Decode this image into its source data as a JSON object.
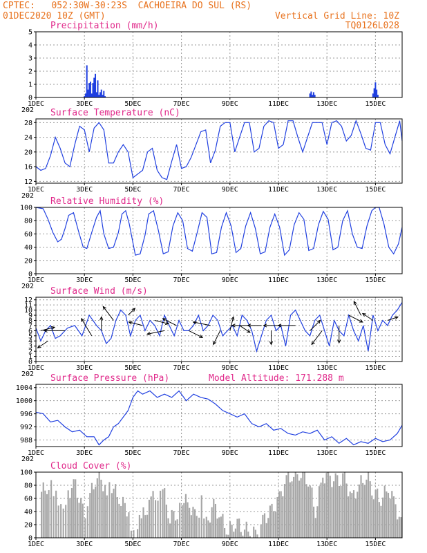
{
  "header": {
    "line1": "CPTEC:   052:30W-30:23S  CACHOEIRA DO SUL (RS)",
    "line2": "01DEC2020 10Z (GMT)",
    "grid_note": "Vertical Grid Line: 10Z",
    "code": "TQ0126L028"
  },
  "colors": {
    "header": "#e8731f",
    "title": "#e0288a",
    "series": "#1f3fe0",
    "cloud": "#a6a6a6",
    "grid": "#999999"
  },
  "x_tick_labels": [
    "1DEC",
    "3DEC",
    "5DEC",
    "7DEC",
    "9DEC",
    "11DEC",
    "13DEC",
    "15DEC"
  ],
  "x_tick_days": [
    1,
    3,
    5,
    7,
    9,
    11,
    13,
    15
  ],
  "x_partial_label": "202",
  "chart_data": [
    {
      "type": "bar",
      "title": "Precipitation (mm/h)",
      "xlim": [
        1,
        16.1
      ],
      "ylim": [
        0,
        5
      ],
      "yticks": [
        0,
        1,
        2,
        3,
        4,
        5
      ],
      "x": [
        3.0,
        3.05,
        3.1,
        3.15,
        3.2,
        3.25,
        3.3,
        3.35,
        3.4,
        3.45,
        3.5,
        3.55,
        3.6,
        3.65,
        3.7,
        3.75,
        3.8,
        3.85,
        12.3,
        12.35,
        12.4,
        12.45,
        12.5,
        14.9,
        14.95,
        15.0,
        15.05,
        15.1
      ],
      "values": [
        0.1,
        0.3,
        2.45,
        0.6,
        1.1,
        1.2,
        0.3,
        1.1,
        1.5,
        1.8,
        0.4,
        1.3,
        0.2,
        0.4,
        0.6,
        0.2,
        0.5,
        0.1,
        0.3,
        0.45,
        0.2,
        0.4,
        0.2,
        0.3,
        0.7,
        1.15,
        0.6,
        0.2
      ]
    },
    {
      "type": "line",
      "title": "Surface Temperature (nC)",
      "xlim": [
        1,
        16.1
      ],
      "ylim": [
        11.5,
        29
      ],
      "yticks": [
        12,
        16,
        20,
        24,
        28
      ],
      "x": [
        1.0,
        1.2,
        1.4,
        1.6,
        1.8,
        2.0,
        2.2,
        2.4,
        2.6,
        2.8,
        3.0,
        3.2,
        3.4,
        3.6,
        3.8,
        4.0,
        4.2,
        4.4,
        4.6,
        4.8,
        5.0,
        5.2,
        5.4,
        5.6,
        5.8,
        6.0,
        6.2,
        6.4,
        6.6,
        6.8,
        7.0,
        7.2,
        7.4,
        7.6,
        7.8,
        8.0,
        8.2,
        8.4,
        8.6,
        8.8,
        9.0,
        9.2,
        9.4,
        9.6,
        9.8,
        10.0,
        10.2,
        10.4,
        10.6,
        10.8,
        11.0,
        11.2,
        11.4,
        11.6,
        11.8,
        12.0,
        12.2,
        12.4,
        12.6,
        12.8,
        13.0,
        13.2,
        13.4,
        13.6,
        13.8,
        14.0,
        14.2,
        14.4,
        14.6,
        14.8,
        15.0,
        15.2,
        15.4,
        15.6,
        15.8,
        16.0,
        16.1
      ],
      "values": [
        16,
        15,
        15.5,
        19,
        24,
        21,
        17,
        16,
        22,
        27,
        26,
        20,
        26.5,
        28,
        26,
        17,
        17,
        20,
        22,
        20,
        13,
        14,
        15,
        20,
        21,
        15,
        13,
        12.5,
        17.5,
        22,
        15.5,
        16,
        18.5,
        22,
        25.5,
        26,
        17,
        20.5,
        27,
        28,
        28,
        20,
        24,
        28,
        28,
        20,
        21,
        27,
        28.5,
        28,
        21,
        22,
        28.5,
        28.5,
        24,
        20,
        24,
        28,
        28,
        28,
        22,
        28,
        28.5,
        27,
        23,
        24.5,
        28.5,
        25,
        21,
        20.5,
        28,
        28,
        22,
        19.5,
        24,
        28.5,
        23
      ]
    },
    {
      "type": "line",
      "title": "Relative Humidity (%)",
      "xlim": [
        1,
        16.1
      ],
      "ylim": [
        0,
        100
      ],
      "yticks": [
        0,
        20,
        40,
        60,
        80,
        100
      ],
      "x": [
        1.0,
        1.15,
        1.3,
        1.5,
        1.7,
        1.9,
        2.05,
        2.2,
        2.35,
        2.55,
        2.75,
        2.95,
        3.1,
        3.3,
        3.5,
        3.65,
        3.8,
        4.0,
        4.2,
        4.4,
        4.55,
        4.7,
        4.85,
        5.1,
        5.3,
        5.5,
        5.65,
        5.85,
        6.05,
        6.25,
        6.45,
        6.65,
        6.85,
        7.05,
        7.25,
        7.45,
        7.65,
        7.85,
        8.05,
        8.25,
        8.45,
        8.65,
        8.85,
        9.05,
        9.25,
        9.45,
        9.65,
        9.85,
        10.05,
        10.25,
        10.45,
        10.65,
        10.85,
        11.05,
        11.25,
        11.45,
        11.65,
        11.85,
        12.05,
        12.25,
        12.45,
        12.65,
        12.85,
        13.05,
        13.25,
        13.45,
        13.65,
        13.85,
        14.05,
        14.25,
        14.45,
        14.65,
        14.85,
        15.0,
        15.15,
        15.35,
        15.55,
        15.75,
        15.95,
        16.1
      ],
      "values": [
        100,
        99,
        98,
        82,
        62,
        48,
        52,
        68,
        88,
        92,
        65,
        40,
        38,
        62,
        85,
        95,
        60,
        38,
        40,
        62,
        90,
        95,
        75,
        28,
        30,
        58,
        90,
        95,
        65,
        30,
        33,
        72,
        92,
        80,
        38,
        34,
        62,
        92,
        85,
        30,
        32,
        70,
        92,
        72,
        32,
        38,
        72,
        92,
        68,
        30,
        33,
        70,
        90,
        70,
        28,
        36,
        74,
        92,
        82,
        35,
        38,
        74,
        94,
        82,
        36,
        40,
        80,
        95,
        60,
        40,
        38,
        72,
        95,
        100,
        100,
        75,
        40,
        30,
        45,
        70
      ]
    },
    {
      "type": "line",
      "title": "Surface Wind (m/s)",
      "xlim": [
        1,
        16.1
      ],
      "ylim": [
        0,
        12.5
      ],
      "yticks": [
        0,
        1,
        2,
        3,
        4,
        5,
        6,
        7,
        8,
        9,
        10,
        11,
        12
      ],
      "x": [
        1.0,
        1.2,
        1.4,
        1.6,
        1.8,
        2.0,
        2.3,
        2.6,
        2.9,
        3.2,
        3.5,
        3.7,
        3.9,
        4.1,
        4.3,
        4.5,
        4.7,
        4.9,
        5.1,
        5.3,
        5.5,
        5.7,
        5.9,
        6.1,
        6.3,
        6.5,
        6.7,
        6.9,
        7.1,
        7.3,
        7.5,
        7.7,
        7.9,
        8.1,
        8.3,
        8.5,
        8.7,
        8.9,
        9.1,
        9.3,
        9.5,
        9.7,
        9.9,
        10.1,
        10.3,
        10.5,
        10.7,
        10.9,
        11.1,
        11.3,
        11.5,
        11.7,
        11.9,
        12.1,
        12.3,
        12.5,
        12.7,
        12.9,
        13.1,
        13.3,
        13.5,
        13.7,
        13.9,
        14.1,
        14.3,
        14.5,
        14.7,
        14.9,
        15.1,
        15.3,
        15.5,
        15.7,
        15.9,
        16.1
      ],
      "values": [
        6.5,
        4,
        6,
        7,
        4.5,
        5,
        6.5,
        7,
        5,
        9,
        7,
        6,
        3.5,
        4.5,
        8,
        10,
        9,
        5,
        8,
        9,
        6,
        8,
        7,
        5,
        9,
        7,
        5,
        8,
        6,
        6,
        7,
        9,
        6,
        7,
        9,
        8,
        5,
        6,
        7,
        5,
        9,
        8,
        6,
        2,
        5,
        8,
        9,
        6,
        7,
        3,
        9,
        10,
        8,
        6,
        5,
        8,
        9,
        6,
        3,
        8,
        6,
        5,
        9,
        6,
        4,
        7,
        2,
        9,
        6,
        8,
        7,
        9,
        10,
        11.5
      ]
    },
    {
      "type": "line",
      "title": "Surface Pressure (hPa)",
      "annotation": "Model Altitude: 171.288  m",
      "xlim": [
        1,
        16.1
      ],
      "ylim": [
        986,
        1005
      ],
      "yticks": [
        988,
        992,
        996,
        1000,
        1004
      ],
      "x": [
        1.0,
        1.3,
        1.6,
        1.9,
        2.2,
        2.5,
        2.8,
        3.1,
        3.4,
        3.6,
        3.8,
        4.0,
        4.2,
        4.4,
        4.6,
        4.8,
        5.0,
        5.2,
        5.4,
        5.7,
        6.0,
        6.3,
        6.6,
        6.9,
        7.2,
        7.5,
        7.8,
        8.1,
        8.4,
        8.7,
        9.0,
        9.3,
        9.6,
        9.9,
        10.2,
        10.5,
        10.8,
        11.1,
        11.4,
        11.7,
        12.0,
        12.3,
        12.6,
        12.9,
        13.2,
        13.5,
        13.8,
        14.1,
        14.4,
        14.7,
        15.0,
        15.3,
        15.6,
        15.9,
        16.1
      ],
      "values": [
        996.5,
        996,
        993.5,
        994,
        992,
        990.5,
        991,
        989,
        989,
        986.5,
        988,
        989,
        992,
        993,
        995,
        997,
        1001,
        1003,
        1002,
        1003,
        1001,
        1002,
        1001,
        1003,
        1000,
        1002,
        1001,
        1000.5,
        999,
        997,
        996,
        995,
        996,
        993,
        992,
        993,
        991,
        991.5,
        990,
        989.5,
        990.5,
        990,
        991,
        988,
        989,
        987,
        988.5,
        986.5,
        987.5,
        987,
        988.5,
        987.5,
        988,
        990,
        992.5
      ]
    },
    {
      "type": "area",
      "title": "Cloud Cover (%)",
      "xlim": [
        1,
        16.1
      ],
      "ylim": [
        0,
        100
      ],
      "yticks": [
        0,
        20,
        40,
        60,
        80,
        100
      ],
      "x": [
        1.2,
        1.5,
        1.7,
        1.9,
        2.1,
        2.3,
        2.6,
        2.9,
        3.0,
        3.2,
        3.5,
        3.9,
        4.1,
        4.4,
        4.8,
        5.0,
        5.4,
        5.8,
        6.0,
        6.2,
        6.5,
        6.8,
        7.0,
        7.3,
        7.6,
        7.8,
        8.0,
        8.3,
        8.6,
        8.9,
        9.2,
        9.5,
        9.8,
        10.1,
        10.4,
        10.7,
        11.0,
        11.3,
        11.6,
        11.9,
        12.2,
        12.5,
        12.8,
        13.1,
        13.4,
        13.7,
        14.0,
        14.3,
        14.6,
        14.9,
        15.2,
        15.5,
        15.8,
        16.1
      ],
      "values": [
        70,
        80,
        75,
        60,
        50,
        70,
        80,
        40,
        20,
        65,
        95,
        75,
        80,
        60,
        40,
        5,
        35,
        60,
        50,
        75,
        30,
        40,
        60,
        50,
        30,
        55,
        20,
        50,
        30,
        10,
        25,
        15,
        10,
        5,
        30,
        40,
        60,
        90,
        95,
        100,
        90,
        40,
        95,
        90,
        85,
        90,
        60,
        80,
        95,
        70,
        60,
        75,
        50,
        10
      ]
    }
  ]
}
